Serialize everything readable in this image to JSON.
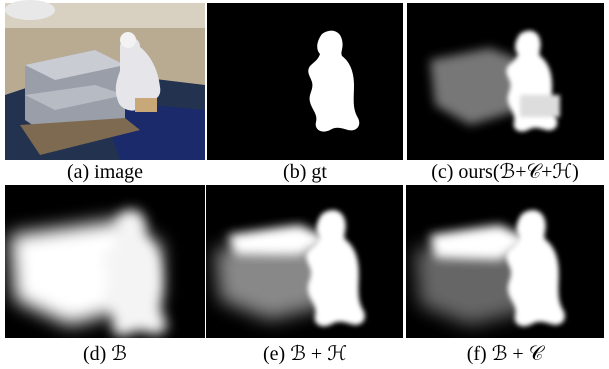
{
  "figure": {
    "panels": [
      {
        "caption": "(a) image"
      },
      {
        "caption": "(b) gt"
      },
      {
        "caption": "(c) ours(ℬ+𝒞+ℋ)"
      },
      {
        "caption": "(d) ℬ"
      },
      {
        "caption": "(e) ℬ + ℋ"
      },
      {
        "caption": "(f) ℬ + 𝒞"
      }
    ]
  }
}
